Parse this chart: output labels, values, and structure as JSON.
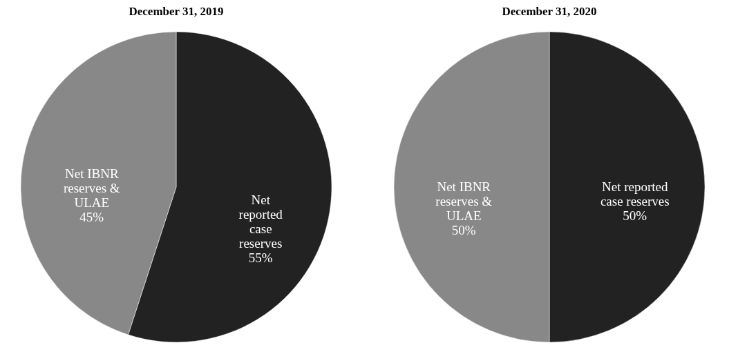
{
  "chart_data": [
    {
      "type": "pie",
      "title": "December 31, 2019",
      "categories": [
        "Net reported case reserves",
        "Net IBNR reserves & ULAE"
      ],
      "values": [
        55,
        45
      ],
      "value_labels": [
        "55%",
        "45%"
      ],
      "colors": [
        "#222222",
        "#888888"
      ],
      "legend": false
    },
    {
      "type": "pie",
      "title": "December 31, 2020",
      "categories": [
        "Net reported case reserves",
        "Net IBNR reserves & ULAE"
      ],
      "values": [
        50,
        50
      ],
      "value_labels": [
        "50%",
        "50%"
      ],
      "colors": [
        "#222222",
        "#888888"
      ],
      "legend": false
    }
  ]
}
